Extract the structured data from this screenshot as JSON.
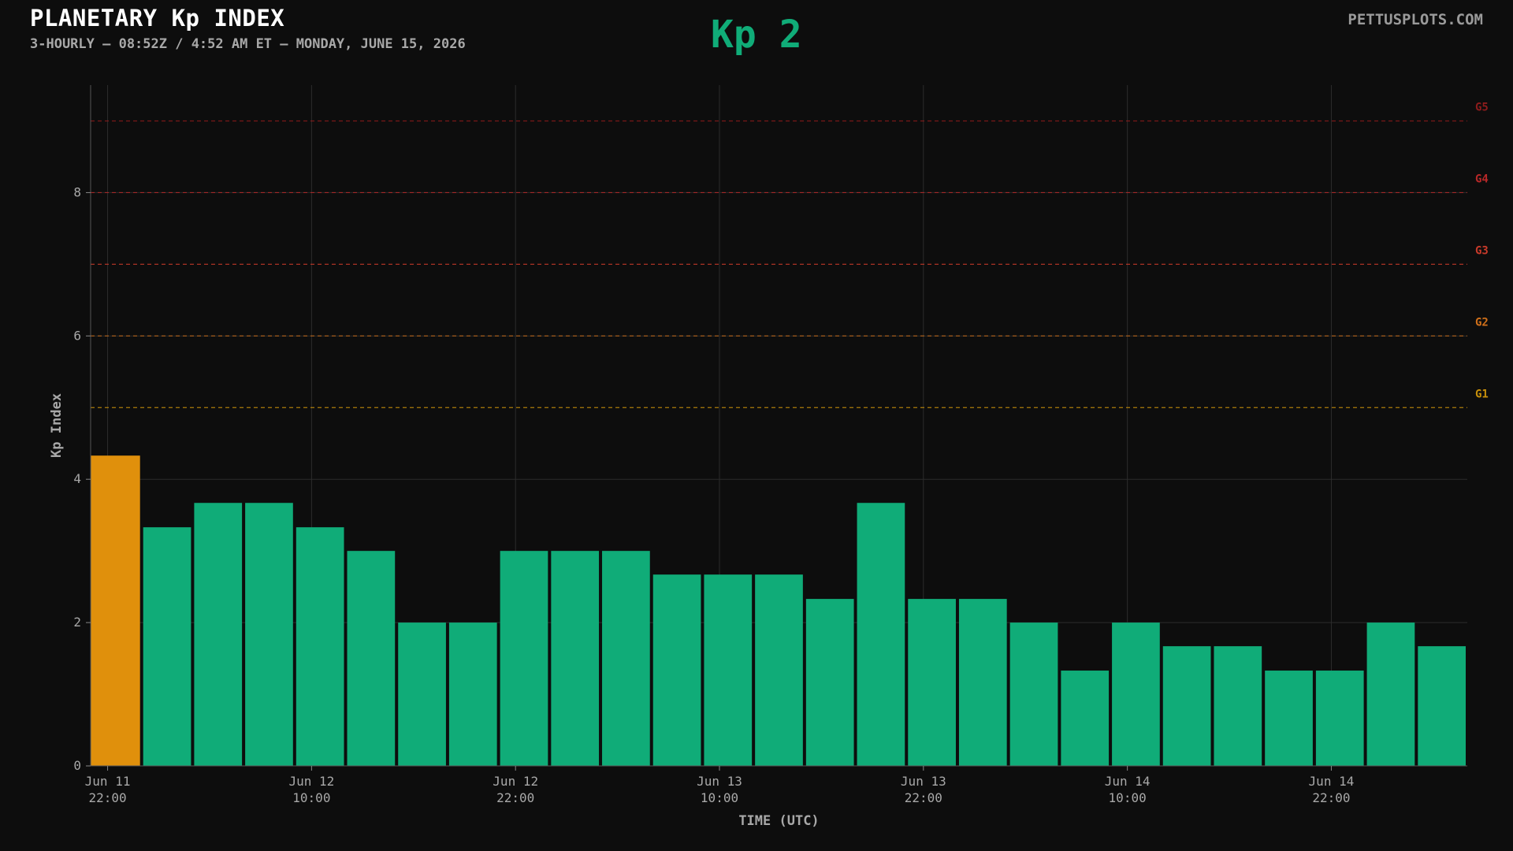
{
  "header": {
    "title": "PLANETARY Kp INDEX",
    "subtitle": "3-HOURLY — 08:52Z / 4:52 AM ET — MONDAY, JUNE 15, 2026",
    "current_kp_label": "Kp 2",
    "current_kp_color": "#10ac78",
    "brand": "PETTUSPLOTS.COM"
  },
  "chart_data": {
    "type": "bar",
    "title": "PLANETARY Kp INDEX",
    "xlabel": "TIME (UTC)",
    "ylabel": "Kp Index",
    "ylim": [
      0,
      9.5
    ],
    "yticks": [
      0,
      2,
      4,
      6,
      8
    ],
    "grid": true,
    "x_start": "2026-06-11 21:00",
    "interval_hours": 3,
    "values": [
      4.33,
      3.33,
      3.67,
      3.67,
      3.33,
      3.0,
      2.0,
      2.0,
      3.0,
      3.0,
      3.0,
      2.67,
      2.67,
      2.67,
      2.33,
      3.67,
      2.33,
      2.33,
      2.0,
      1.33,
      2.0,
      1.67,
      1.67,
      1.33,
      1.33,
      2.0,
      1.67
    ],
    "colors": {
      "quiet": "#10ac78",
      "active": "#e0900c"
    },
    "active_threshold": 4,
    "xticks": [
      {
        "time": "2026-06-11 22:00",
        "line1": "Jun 11",
        "line2": "22:00"
      },
      {
        "time": "2026-06-12 10:00",
        "line1": "Jun 12",
        "line2": "10:00"
      },
      {
        "time": "2026-06-12 22:00",
        "line1": "Jun 12",
        "line2": "22:00"
      },
      {
        "time": "2026-06-13 10:00",
        "line1": "Jun 13",
        "line2": "10:00"
      },
      {
        "time": "2026-06-13 22:00",
        "line1": "Jun 13",
        "line2": "22:00"
      },
      {
        "time": "2026-06-14 10:00",
        "line1": "Jun 14",
        "line2": "10:00"
      },
      {
        "time": "2026-06-14 22:00",
        "line1": "Jun 14",
        "line2": "22:00"
      }
    ],
    "storm_levels": [
      {
        "label": "G1",
        "kp": 5,
        "color": "#c8900a"
      },
      {
        "label": "G2",
        "kp": 6,
        "color": "#d0701a"
      },
      {
        "label": "G3",
        "kp": 7,
        "color": "#c83a2a"
      },
      {
        "label": "G4",
        "kp": 8,
        "color": "#b82828"
      },
      {
        "label": "G5",
        "kp": 9,
        "color": "#8e1c1c"
      }
    ]
  }
}
